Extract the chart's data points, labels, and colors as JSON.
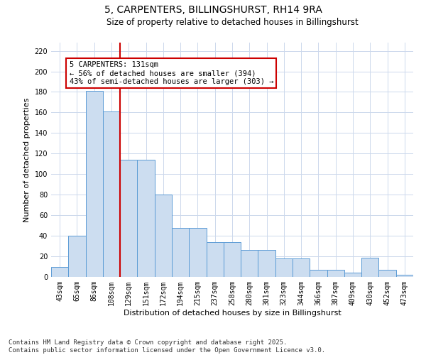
{
  "title_line1": "5, CARPENTERS, BILLINGSHURST, RH14 9RA",
  "title_line2": "Size of property relative to detached houses in Billingshurst",
  "xlabel": "Distribution of detached houses by size in Billingshurst",
  "ylabel": "Number of detached properties",
  "categories": [
    "43sqm",
    "65sqm",
    "86sqm",
    "108sqm",
    "129sqm",
    "151sqm",
    "172sqm",
    "194sqm",
    "215sqm",
    "237sqm",
    "258sqm",
    "280sqm",
    "301sqm",
    "323sqm",
    "344sqm",
    "366sqm",
    "387sqm",
    "409sqm",
    "430sqm",
    "452sqm",
    "473sqm"
  ],
  "values": [
    10,
    40,
    181,
    161,
    114,
    114,
    80,
    48,
    48,
    34,
    34,
    26,
    26,
    18,
    18,
    7,
    7,
    4,
    19,
    7,
    2
  ],
  "bar_color": "#ccddf0",
  "bar_edge_color": "#5b9bd5",
  "vline_x": 3.5,
  "vline_color": "#cc0000",
  "annotation_text": "5 CARPENTERS: 131sqm\n← 56% of detached houses are smaller (394)\n43% of semi-detached houses are larger (303) →",
  "annotation_box_color": "#cc0000",
  "ylim": [
    0,
    228
  ],
  "yticks": [
    0,
    20,
    40,
    60,
    80,
    100,
    120,
    140,
    160,
    180,
    200,
    220
  ],
  "footer_line1": "Contains HM Land Registry data © Crown copyright and database right 2025.",
  "footer_line2": "Contains public sector information licensed under the Open Government Licence v3.0.",
  "bg_color": "#ffffff",
  "grid_color": "#ccd8ec",
  "title_fontsize": 10,
  "subtitle_fontsize": 8.5,
  "axis_label_fontsize": 8,
  "tick_fontsize": 7,
  "annotation_fontsize": 7.5,
  "footer_fontsize": 6.5
}
